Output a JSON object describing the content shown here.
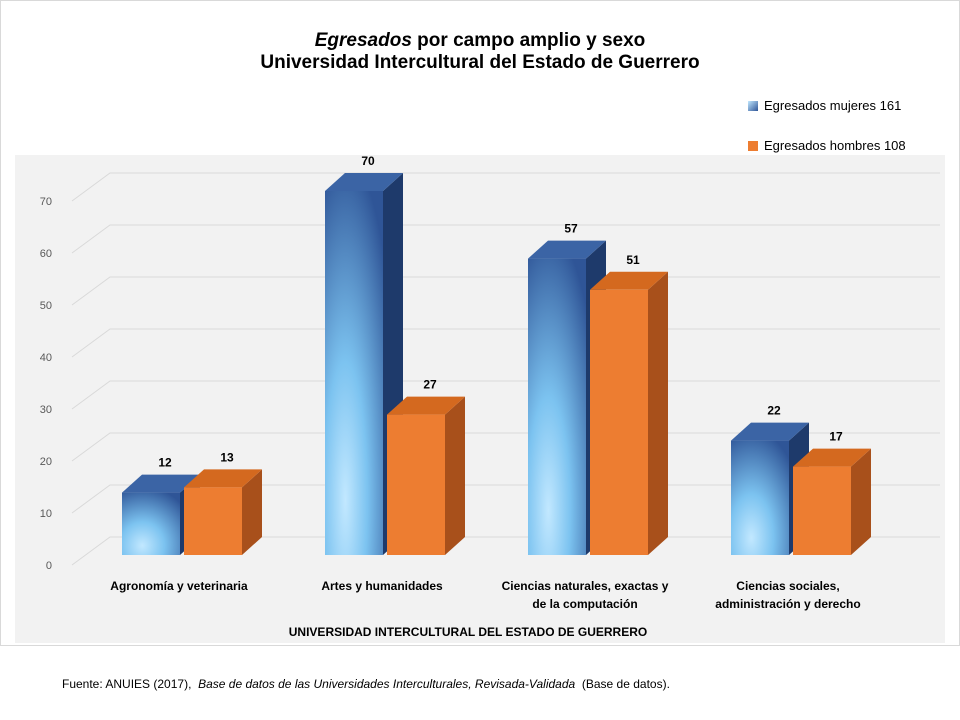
{
  "title": {
    "italic_part": "Egresados",
    "rest": " por campo amplio y sexo",
    "line2": "Universidad Intercultural del Estado de Guerrero"
  },
  "source": {
    "prefix": "Fuente: ANUIES (2017), ",
    "italic": "Base de datos de las Universidades  Interculturales, Revisada-Validada",
    "suffix": " (Base de datos)."
  },
  "colors": {
    "mujeres_front": "#6fb4e6",
    "mujeres_side": "#1e3a6b",
    "hombres_front": "#ed7d31",
    "hombres_side": "#a8501b",
    "plot_bg": "#f2f2f2"
  },
  "chart_data": {
    "type": "bar",
    "categories": [
      "Agronomía y veterinaria",
      "Artes y humanidades",
      "Ciencias naturales, exactas y de la computación",
      "Ciencias sociales, administración y derecho"
    ],
    "category_lines": [
      [
        "Agronomía y veterinaria"
      ],
      [
        "Artes y humanidades"
      ],
      [
        "Ciencias naturales, exactas y",
        "de la computación"
      ],
      [
        "Ciencias sociales,",
        "administración y derecho"
      ]
    ],
    "series": [
      {
        "name": "Egresados mujeres  161",
        "values": [
          12,
          70,
          57,
          22
        ]
      },
      {
        "name": "Egresados hombres 108",
        "values": [
          13,
          27,
          51,
          17
        ]
      }
    ],
    "xlabel": "UNIVERSIDAD INTERCULTURAL DEL ESTADO DE GUERRERO",
    "ylabel": "",
    "ylim": [
      0,
      70
    ],
    "yticks": [
      0,
      10,
      20,
      30,
      40,
      50,
      60,
      70
    ],
    "grid": true,
    "legend": "top-right",
    "style": "3d-column"
  }
}
